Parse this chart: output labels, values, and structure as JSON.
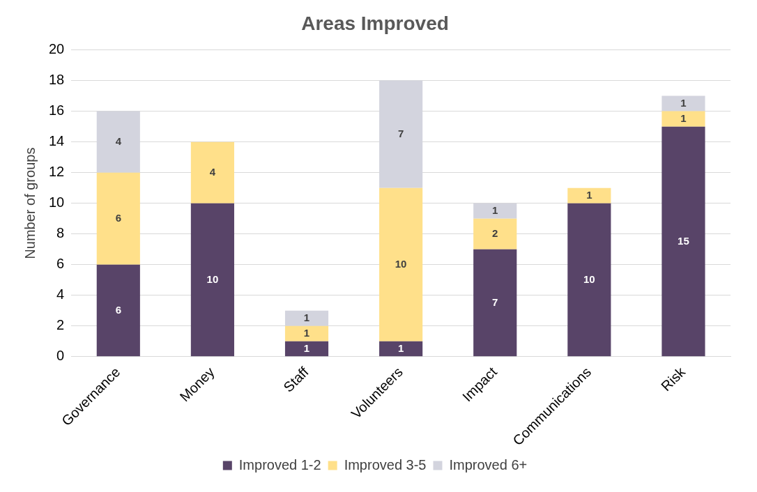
{
  "chart_data": {
    "type": "bar",
    "title": "Areas Improved",
    "ylabel": "Number of groups",
    "stacked": true,
    "categories": [
      "Governance",
      "Money",
      "Staff",
      "Volunteers",
      "Impact",
      "Communications",
      "Risk"
    ],
    "series": [
      {
        "name": "Improved 1-2",
        "color": "#584468",
        "values": [
          6,
          10,
          1,
          1,
          7,
          10,
          15
        ]
      },
      {
        "name": "Improved 3-5",
        "color": "#ffe08a",
        "values": [
          6,
          4,
          1,
          10,
          2,
          1,
          1
        ]
      },
      {
        "name": "Improved 6+",
        "color": "#d3d4de",
        "values": [
          4,
          null,
          1,
          7,
          1,
          null,
          1
        ]
      }
    ],
    "ylim": [
      0,
      20
    ],
    "yticks": [
      0,
      2,
      4,
      6,
      8,
      10,
      12,
      14,
      16,
      18,
      20
    ],
    "grid": "y",
    "legend": "bottom",
    "data_labels": true
  }
}
